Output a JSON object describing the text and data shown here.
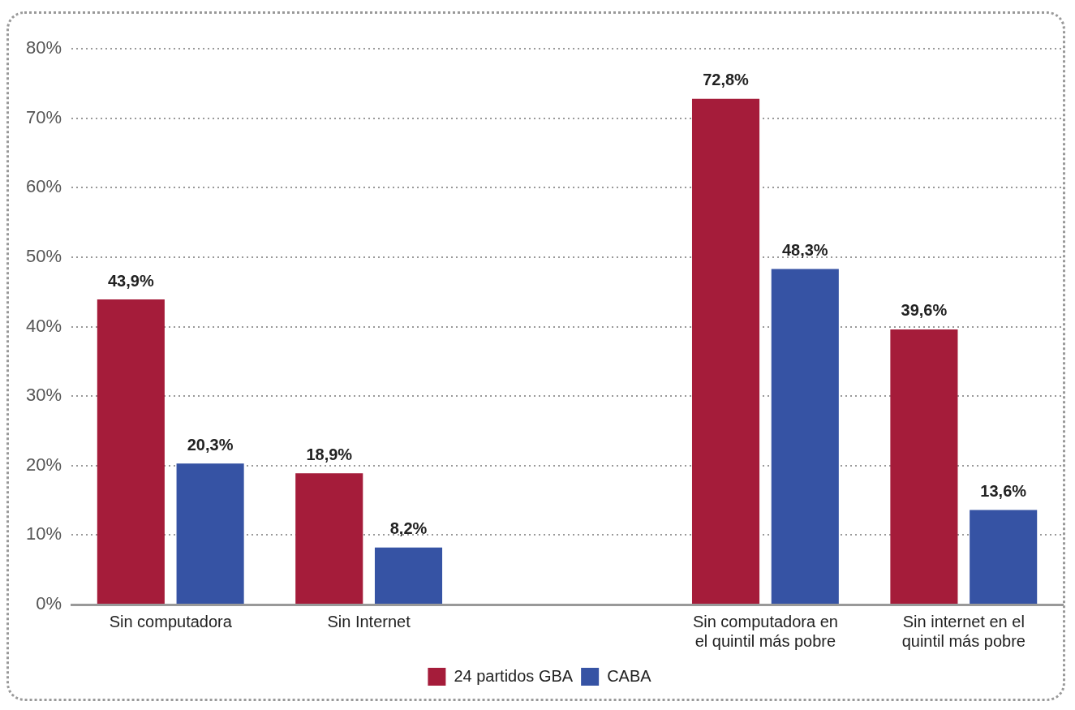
{
  "chart_data": {
    "type": "bar",
    "categories": [
      "Sin computadora",
      "Sin Internet",
      null,
      "Sin computadora en el quintil más pobre",
      "Sin internet en el quintil más pobre"
    ],
    "series": [
      {
        "name": "24 partidos GBA",
        "color": "#a51c3a",
        "values": [
          43.9,
          18.9,
          null,
          72.8,
          39.6
        ],
        "value_labels": [
          "43,9%",
          "18,9%",
          null,
          "72,8%",
          "39,6%"
        ]
      },
      {
        "name": "CABA",
        "color": "#3653a4",
        "values": [
          20.3,
          8.2,
          null,
          48.3,
          13.6
        ],
        "value_labels": [
          "20,3%",
          "8,2%",
          null,
          "48,3%",
          "13,6%"
        ]
      }
    ],
    "ylim": [
      0,
      80
    ],
    "yticks": [
      {
        "value": 0,
        "label": "0%"
      },
      {
        "value": 10,
        "label": "10%"
      },
      {
        "value": 20,
        "label": "20%"
      },
      {
        "value": 30,
        "label": "30%"
      },
      {
        "value": 40,
        "label": "40%"
      },
      {
        "value": 50,
        "label": "50%"
      },
      {
        "value": 60,
        "label": "60%"
      },
      {
        "value": 70,
        "label": "70%"
      },
      {
        "value": 80,
        "label": "80%"
      }
    ],
    "grid": "y",
    "legend": "bottom"
  }
}
